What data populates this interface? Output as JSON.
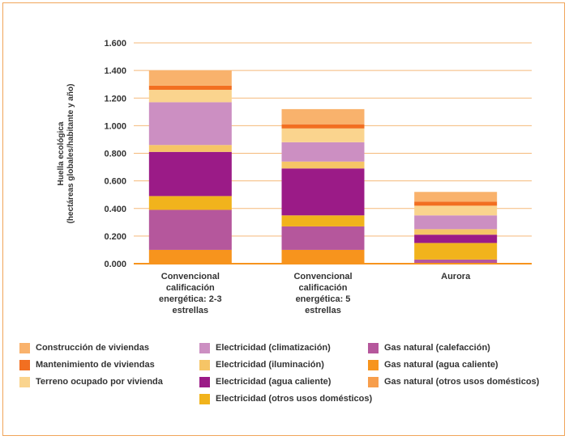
{
  "chart_data": {
    "type": "bar",
    "stacked": true,
    "title": "",
    "xlabel": "",
    "ylabel_lines": [
      "Huella ecológica",
      "(hectáreas globales/habitante y año)"
    ],
    "ylim": [
      0,
      1.6
    ],
    "yticks": [
      "0.000",
      "0.200",
      "0.400",
      "0.600",
      "0.800",
      "1.000",
      "1.200",
      "1.400",
      "1.600"
    ],
    "categories": [
      [
        "Convencional",
        "calificación",
        "energética: 2-3",
        "estrellas"
      ],
      [
        "Convencional",
        "calificación",
        "energética: 5",
        "estrellas"
      ],
      [
        "Aurora"
      ]
    ],
    "grid": true,
    "legend_position": "bottom",
    "series": [
      {
        "name": "Gas natural (agua caliente)",
        "color": "#f7941d",
        "values": [
          0.1,
          0.1,
          0.0
        ]
      },
      {
        "name": "Gas natural (calefacción)",
        "color": "#b5579c",
        "values": [
          0.29,
          0.17,
          0.03
        ]
      },
      {
        "name": "Electricidad (otros usos domésticos)",
        "color": "#f1b31c",
        "values": [
          0.1,
          0.08,
          0.12
        ]
      },
      {
        "name": "Electricidad (agua caliente)",
        "color": "#9b1b87",
        "values": [
          0.32,
          0.34,
          0.06
        ]
      },
      {
        "name": "Electricidad (iluminación)",
        "color": "#f6c566",
        "values": [
          0.05,
          0.05,
          0.04
        ]
      },
      {
        "name": "Electricidad (climatización)",
        "color": "#cc8fc2",
        "values": [
          0.31,
          0.14,
          0.1
        ]
      },
      {
        "name": "Terreno ocupado por vivienda",
        "color": "#fad48e",
        "values": [
          0.09,
          0.1,
          0.07
        ]
      },
      {
        "name": "Mantenimiento de viviendas",
        "color": "#f26f21",
        "values": [
          0.03,
          0.03,
          0.03
        ]
      },
      {
        "name": "Construcción de viviendas",
        "color": "#f9b26c",
        "values": [
          0.11,
          0.11,
          0.07
        ]
      },
      {
        "name": "Gas natural (otros usos domésticos)",
        "color": "#f79e4c",
        "values": [
          0,
          0,
          0
        ]
      }
    ],
    "legend_order": [
      "Construcción de viviendas",
      "Mantenimiento de viviendas",
      "Terreno ocupado por vivienda",
      "Electricidad (climatización)",
      "Electricidad (iluminación)",
      "Electricidad (agua caliente)",
      "Electricidad (otros usos domésticos)",
      "Gas natural (calefacción)",
      "Gas natural (agua caliente)",
      "Gas natural (otros usos domésticos)"
    ]
  },
  "colors": {
    "grid": "#f5b97a",
    "axis": "#f7941d",
    "frame": "#f0a55a"
  }
}
